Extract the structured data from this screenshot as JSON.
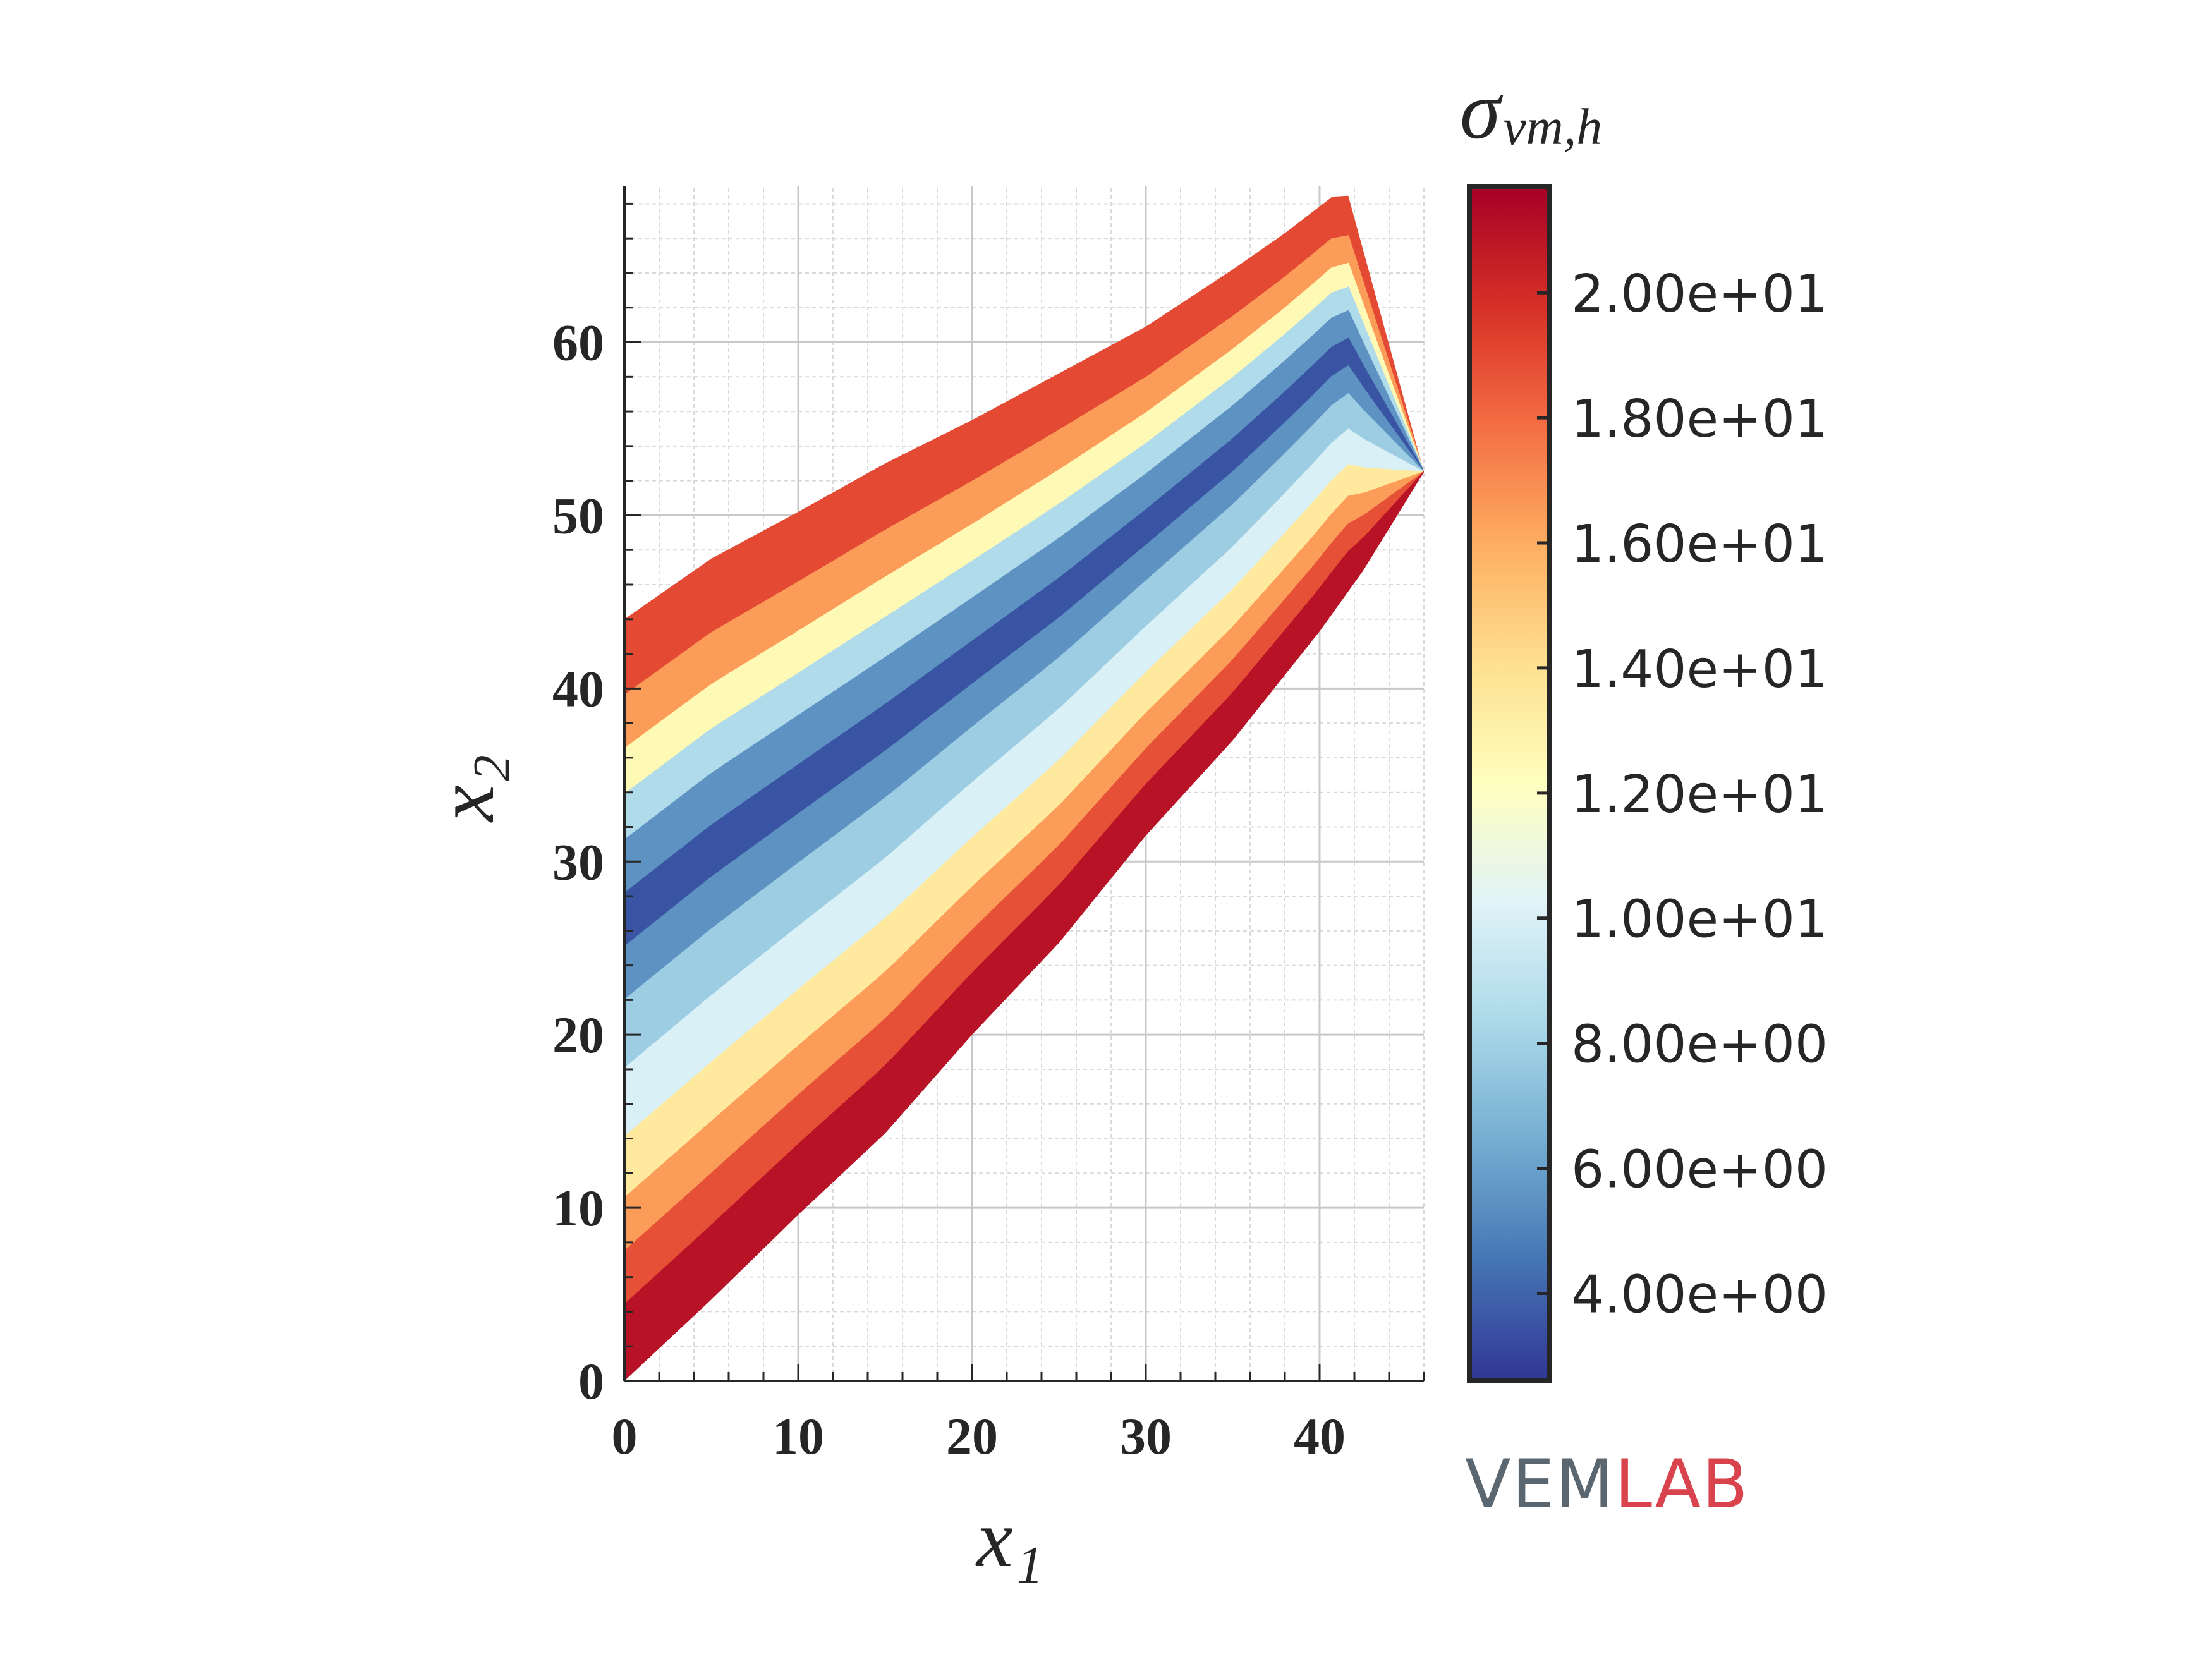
{
  "chart_data": {
    "type": "heatmap",
    "title": "",
    "xlabel": {
      "main": "x",
      "sub": "1"
    },
    "ylabel": {
      "main": "x",
      "sub": "2"
    },
    "xlim": [
      0,
      46
    ],
    "ylim": [
      0,
      69
    ],
    "xticks": [
      0,
      10,
      20,
      30,
      40
    ],
    "yticks": [
      0,
      10,
      20,
      30,
      40,
      50,
      60
    ],
    "grid": "major and minor",
    "domain": {
      "left_edge": [
        [
          0,
          0
        ],
        [
          0,
          44
        ]
      ],
      "top_curve_x": [
        0,
        5,
        10,
        15,
        20,
        25,
        30,
        35,
        38,
        41.5
      ],
      "top_curve_y": [
        44,
        47.5,
        50.2,
        53,
        55.5,
        58.2,
        60.9,
        64.2,
        66.3,
        69
      ],
      "right_edge": [
        [
          41.5,
          69
        ],
        [
          46,
          52.5
        ],
        [
          42.5,
          46.8
        ]
      ],
      "bottom_curve_x": [
        42.5,
        40,
        35,
        30,
        25,
        20,
        15,
        10,
        5,
        0
      ],
      "bottom_curve_y": [
        46.8,
        43.3,
        37,
        31.5,
        25.3,
        20,
        14.3,
        9.6,
        4.7,
        0
      ]
    },
    "bands": [
      {
        "stress": 19.0,
        "t0": 0.0,
        "t1": 0.1
      },
      {
        "stress": 16.5,
        "t0": 0.1,
        "t1": 0.17
      },
      {
        "stress": 12.5,
        "t0": 0.17,
        "t1": 0.23
      },
      {
        "stress": 8.5,
        "t0": 0.23,
        "t1": 0.29
      },
      {
        "stress": 5.5,
        "t0": 0.29,
        "t1": 0.36
      },
      {
        "stress": 3.5,
        "t0": 0.36,
        "t1": 0.43
      },
      {
        "stress": 5.5,
        "t0": 0.43,
        "t1": 0.5
      },
      {
        "stress": 7.8,
        "t0": 0.5,
        "t1": 0.59
      },
      {
        "stress": 10.0,
        "t0": 0.59,
        "t1": 0.68
      },
      {
        "stress": 13.5,
        "t0": 0.68,
        "t1": 0.76
      },
      {
        "stress": 16.5,
        "t0": 0.76,
        "t1": 0.83
      },
      {
        "stress": 18.8,
        "t0": 0.83,
        "t1": 0.9
      },
      {
        "stress": 21.0,
        "t0": 0.9,
        "t1": 1.0
      }
    ],
    "colorbar": {
      "title_main": "σ",
      "title_sub": "vm,",
      "title_sub_italic": "h",
      "min": 2.6,
      "max": 21.7,
      "ticks": [
        4,
        6,
        8,
        10,
        12,
        14,
        16,
        18,
        20
      ],
      "tick_labels": [
        "4.00e+00",
        "6.00e+00",
        "8.00e+00",
        "1.00e+01",
        "1.20e+01",
        "1.40e+01",
        "1.60e+01",
        "1.80e+01",
        "2.00e+01"
      ],
      "colormap": [
        "#313695",
        "#4575b4",
        "#74add1",
        "#abd9e9",
        "#e0f3f8",
        "#ffffbf",
        "#fee090",
        "#fdae61",
        "#f46d43",
        "#d73027",
        "#a50026"
      ]
    }
  },
  "logo": {
    "part1": "VEM",
    "part2": "LAB",
    "color1": "#5a6670",
    "color2": "#d9434e"
  }
}
